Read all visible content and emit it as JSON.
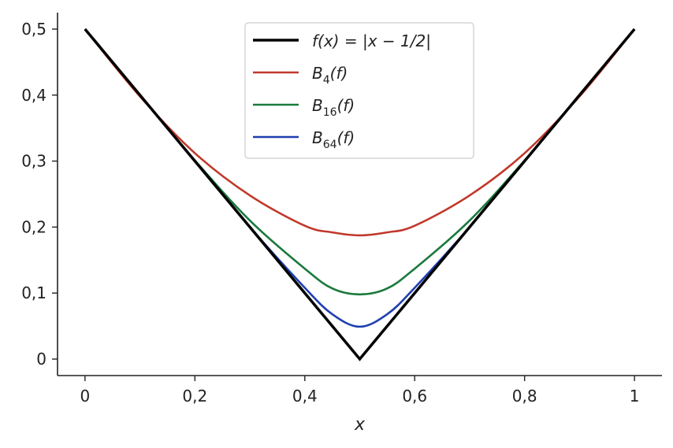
{
  "chart_data": {
    "type": "line",
    "title": "",
    "xlabel": "x",
    "ylabel": "",
    "xlim": [
      -0.05,
      1.05
    ],
    "ylim": [
      -0.025,
      0.525
    ],
    "x_ticks": [
      0,
      0.2,
      0.4,
      0.6,
      0.8,
      1
    ],
    "x_tick_labels": [
      "0",
      "0,2",
      "0,4",
      "0,6",
      "0,8",
      "1"
    ],
    "y_ticks": [
      0,
      0.1,
      0.2,
      0.3,
      0.4,
      0.5
    ],
    "y_tick_labels": [
      "0",
      "0,1",
      "0,2",
      "0,3",
      "0,4",
      "0,5"
    ],
    "grid": false,
    "legend_position": "top-center",
    "x": [
      0,
      0.1,
      0.2,
      0.3,
      0.4,
      0.45,
      0.5,
      0.55,
      0.6,
      0.7,
      0.8,
      0.9,
      1
    ],
    "series": [
      {
        "name": "f(x) = |x − 1/2|",
        "color": "#000000",
        "values": [
          0.5,
          0.4,
          0.3,
          0.2,
          0.1,
          0.05,
          0,
          0.05,
          0.1,
          0.2,
          0.3,
          0.4,
          0.5
        ]
      },
      {
        "name": "B4(f)",
        "color": "#c0392b",
        "values": [
          0.5,
          0.398,
          0.312,
          0.248,
          0.202,
          0.192,
          0.1875,
          0.192,
          0.202,
          0.248,
          0.312,
          0.398,
          0.5
        ]
      },
      {
        "name": "B16(f)",
        "color": "#1a7a3c",
        "values": [
          0.5,
          0.4,
          0.301,
          0.21,
          0.137,
          0.107,
          0.098,
          0.107,
          0.137,
          0.21,
          0.301,
          0.4,
          0.5
        ]
      },
      {
        "name": "B64(f)",
        "color": "#1f3fb0",
        "values": [
          0.5,
          0.4,
          0.3,
          0.2,
          0.108,
          0.068,
          0.049,
          0.068,
          0.108,
          0.2,
          0.3,
          0.4,
          0.5
        ]
      }
    ],
    "legend": [
      {
        "base": "f",
        "sub": "",
        "tail": "(x) = |x − 1/2|",
        "color": "#000000",
        "width": 3.5
      },
      {
        "base": "B",
        "sub": "4",
        "tail": "(f)",
        "color": "#c0392b",
        "width": 2.5
      },
      {
        "base": "B",
        "sub": "16",
        "tail": "(f)",
        "color": "#1a7a3c",
        "width": 2.5
      },
      {
        "base": "B",
        "sub": "64",
        "tail": "(f)",
        "color": "#1f3fb0",
        "width": 2.5
      }
    ]
  }
}
